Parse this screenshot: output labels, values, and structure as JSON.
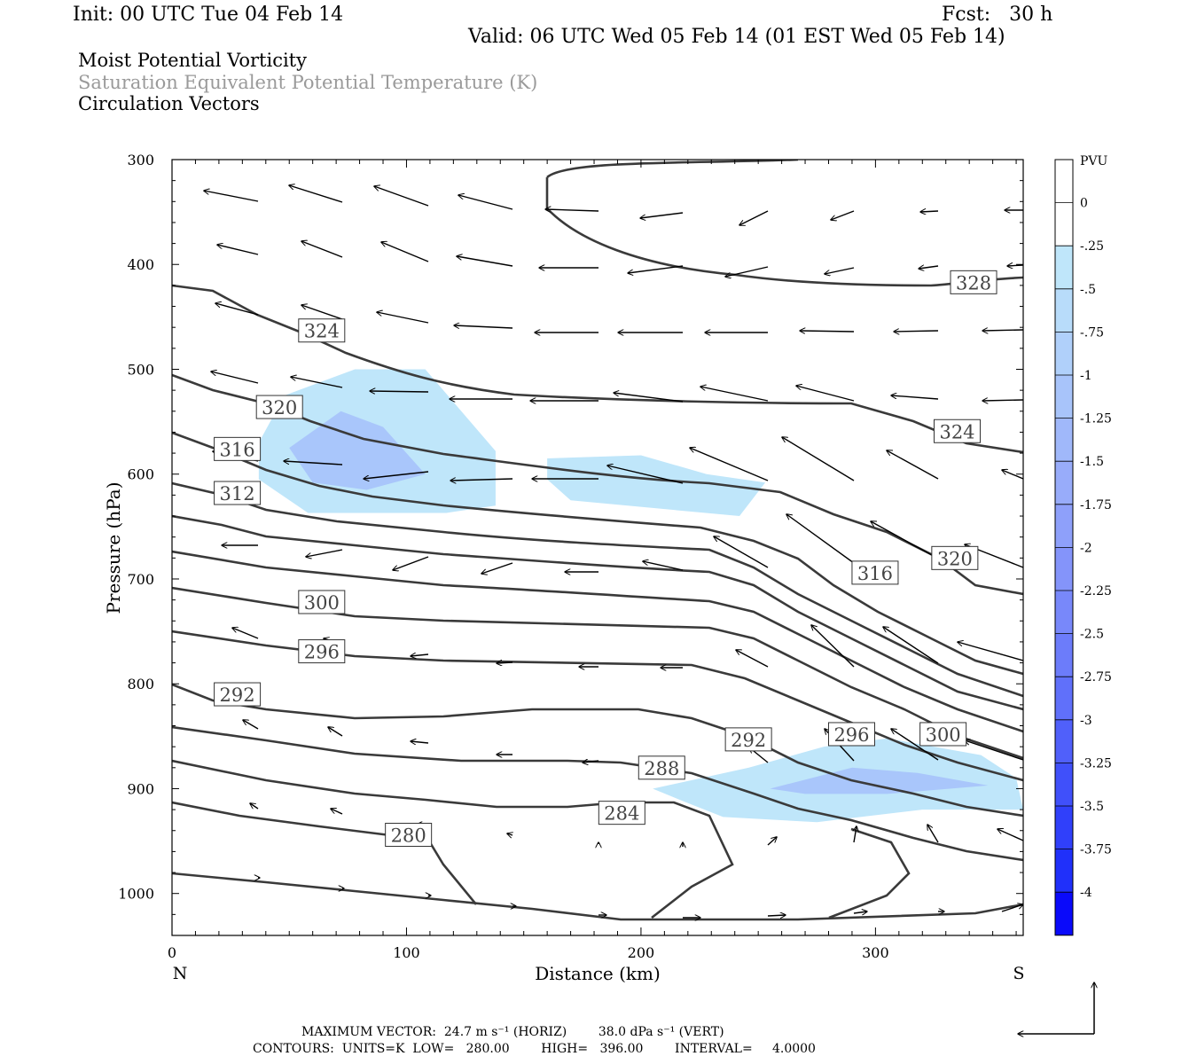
{
  "header": {
    "init": "Init: 00 UTC Tue 04 Feb 14",
    "fcst": "Fcst:   30 h",
    "valid": "Valid: 06 UTC Wed 05 Feb 14 (01 EST Wed 05 Feb 14)",
    "fields": [
      "Moist Potential Vorticity",
      "Saturation Equivalent Potential Temperature (K)",
      "Circulation Vectors"
    ]
  },
  "footer": {
    "line1": "MAXIMUM VECTOR:  24.7 m s⁻¹ (HORIZ)        38.0 dPa s⁻¹ (VERT)",
    "line2": "CONTOURS:  UNITS=K  LOW=   280.00        HIGH=   396.00        INTERVAL=     4.0000"
  },
  "chart_data": {
    "type": "contour",
    "x_axis": {
      "label": "Distance (km)",
      "range": [
        0,
        363
      ],
      "ticks": [
        0,
        100,
        200,
        300
      ],
      "left_end": "N",
      "right_end": "S"
    },
    "y_axis": {
      "label": "Pressure (hPa)",
      "range": [
        300,
        1040
      ],
      "ticks": [
        300,
        400,
        500,
        600,
        700,
        800,
        900,
        1000
      ],
      "inverted": true
    },
    "contour_labels": [
      {
        "text": "328",
        "x": 332,
        "p": 417
      },
      {
        "text": "324",
        "x": 54,
        "p": 463
      },
      {
        "text": "324",
        "x": 325,
        "p": 559
      },
      {
        "text": "320",
        "x": 36,
        "p": 536
      },
      {
        "text": "320",
        "x": 324,
        "p": 680
      },
      {
        "text": "316",
        "x": 18,
        "p": 576
      },
      {
        "text": "316",
        "x": 290,
        "p": 694
      },
      {
        "text": "312",
        "x": 18,
        "p": 618
      },
      {
        "text": "300",
        "x": 54,
        "p": 722
      },
      {
        "text": "300",
        "x": 319,
        "p": 848
      },
      {
        "text": "296",
        "x": 54,
        "p": 769
      },
      {
        "text": "296",
        "x": 280,
        "p": 848
      },
      {
        "text": "292",
        "x": 18,
        "p": 810
      },
      {
        "text": "292",
        "x": 236,
        "p": 853
      },
      {
        "text": "288",
        "x": 199,
        "p": 880
      },
      {
        "text": "284",
        "x": 182,
        "p": 923
      },
      {
        "text": "280",
        "x": 91,
        "p": 944
      }
    ],
    "colorbar": {
      "title": "PVU",
      "labels": [
        "0",
        "-.25",
        "-.5",
        "-.75",
        "-1",
        "-1.25",
        "-1.5",
        "-1.75",
        "-2",
        "-2.25",
        "-2.5",
        "-2.75",
        "-3",
        "-3.25",
        "-3.5",
        "-3.75",
        "-4"
      ],
      "colors": [
        "#ffffff",
        "#ffffff",
        "#bfe6fa",
        "#b8dcfa",
        "#b0d0fa",
        "#a8c4fa",
        "#a0b8fa",
        "#98acfa",
        "#8ea0fa",
        "#8494fa",
        "#7888fa",
        "#6c7cfa",
        "#6070fa",
        "#5060fa",
        "#4050fa",
        "#3040fa",
        "#2030fa",
        "#0a0afa"
      ]
    },
    "mpv_regions": [
      {
        "level": "-.5 to -.75",
        "points": [
          [
            37,
            570
          ],
          [
            48,
            525
          ],
          [
            78,
            500
          ],
          [
            108,
            500
          ],
          [
            138,
            578
          ],
          [
            138,
            630
          ],
          [
            117,
            637
          ],
          [
            58,
            637
          ],
          [
            37,
            605
          ]
        ]
      },
      {
        "level": "-.75 to -1",
        "points": [
          [
            50,
            575
          ],
          [
            72,
            540
          ],
          [
            90,
            555
          ],
          [
            108,
            600
          ],
          [
            83,
            615
          ],
          [
            60,
            608
          ]
        ]
      },
      {
        "level": "-.5 to -.75",
        "points": [
          [
            160,
            585
          ],
          [
            200,
            582
          ],
          [
            228,
            600
          ],
          [
            253,
            608
          ],
          [
            242,
            640
          ],
          [
            170,
            625
          ],
          [
            160,
            605
          ]
        ]
      },
      {
        "level": "-.5 to -.75",
        "points": [
          [
            205,
            900
          ],
          [
            246,
            880
          ],
          [
            278,
            860
          ],
          [
            305,
            852
          ],
          [
            345,
            868
          ],
          [
            360,
            890
          ],
          [
            363,
            920
          ],
          [
            320,
            920
          ],
          [
            275,
            932
          ],
          [
            235,
            927
          ],
          [
            218,
            912
          ]
        ]
      },
      {
        "level": "-.75 to -1",
        "points": [
          [
            255,
            900
          ],
          [
            290,
            880
          ],
          [
            318,
            885
          ],
          [
            348,
            897
          ],
          [
            305,
            905
          ],
          [
            270,
            905
          ]
        ]
      }
    ]
  }
}
